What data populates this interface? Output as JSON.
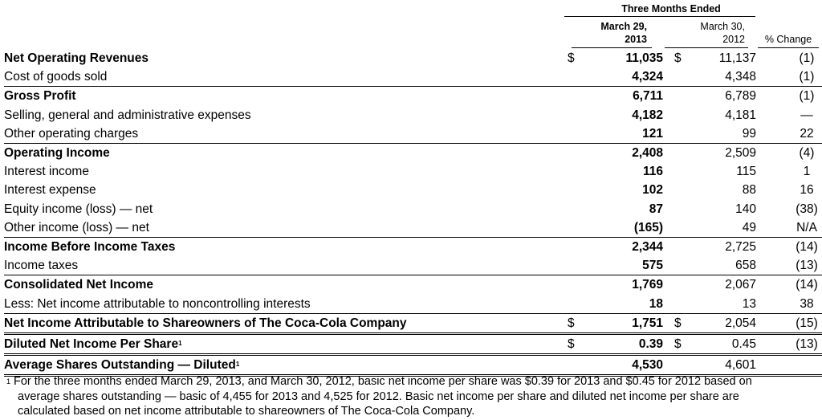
{
  "header": {
    "group_title": "Three Months Ended",
    "col1_line1": "March 29,",
    "col1_line2": "2013",
    "col2_line1": "March 30,",
    "col2_line2": "2012",
    "col3": "% Change"
  },
  "rows": [
    {
      "label": "Net Operating Revenues",
      "cur1": "$",
      "v2013": "11,035",
      "cur2": "$",
      "v2012": "11,137",
      "change": "(1)"
    },
    {
      "label": "Cost of goods sold",
      "cur1": "",
      "v2013": "4,324",
      "cur2": "",
      "v2012": "4,348",
      "change": "(1)"
    },
    {
      "label": "Gross Profit",
      "cur1": "",
      "v2013": "6,711",
      "cur2": "",
      "v2012": "6,789",
      "change": "(1)"
    },
    {
      "label": "Selling, general and administrative expenses",
      "cur1": "",
      "v2013": "4,182",
      "cur2": "",
      "v2012": "4,181",
      "change": "—"
    },
    {
      "label": "Other operating charges",
      "cur1": "",
      "v2013": "121",
      "cur2": "",
      "v2012": "99",
      "change": "22"
    },
    {
      "label": "Operating Income",
      "cur1": "",
      "v2013": "2,408",
      "cur2": "",
      "v2012": "2,509",
      "change": "(4)"
    },
    {
      "label": "Interest income",
      "cur1": "",
      "v2013": "116",
      "cur2": "",
      "v2012": "115",
      "change": "1"
    },
    {
      "label": "Interest expense",
      "cur1": "",
      "v2013": "102",
      "cur2": "",
      "v2012": "88",
      "change": "16"
    },
    {
      "label": "Equity income (loss) — net",
      "cur1": "",
      "v2013": "87",
      "cur2": "",
      "v2012": "140",
      "change": "(38)"
    },
    {
      "label": "Other income (loss) — net",
      "cur1": "",
      "v2013": "(165)",
      "cur2": "",
      "v2012": "49",
      "change": "N/A"
    },
    {
      "label": "Income Before Income Taxes",
      "cur1": "",
      "v2013": "2,344",
      "cur2": "",
      "v2012": "2,725",
      "change": "(14)"
    },
    {
      "label": "Income taxes",
      "cur1": "",
      "v2013": "575",
      "cur2": "",
      "v2012": "658",
      "change": "(13)"
    },
    {
      "label": "Consolidated Net Income",
      "cur1": "",
      "v2013": "1,769",
      "cur2": "",
      "v2012": "2,067",
      "change": "(14)"
    },
    {
      "label": "Less: Net income attributable to noncontrolling interests",
      "cur1": "",
      "v2013": "18",
      "cur2": "",
      "v2012": "13",
      "change": "38"
    },
    {
      "label": "Net Income Attributable to Shareowners of The Coca-Cola Company",
      "cur1": "$",
      "v2013": "1,751",
      "cur2": "$",
      "v2012": "2,054",
      "change": "(15)"
    },
    {
      "label": "Diluted Net Income Per Share",
      "cur1": "$",
      "v2013": "0.39",
      "cur2": "$",
      "v2012": "0.45",
      "change": "(13)"
    },
    {
      "label": "Average Shares Outstanding — Diluted",
      "cur1": "",
      "v2013": "4,530",
      "cur2": "",
      "v2012": "4,601",
      "change": ""
    }
  ],
  "footnote_marker": "1",
  "footnote": {
    "line1": "For the three months ended March 29, 2013, and March 30, 2012, basic net income per share was $0.39 for 2013 and $0.45 for 2012 based on",
    "line2": "average shares outstanding — basic of 4,455 for 2013 and 4,525 for 2012. Basic net income per share and diluted net income per share are",
    "line3": "calculated based on net income attributable to shareowners of The Coca-Cola Company."
  }
}
